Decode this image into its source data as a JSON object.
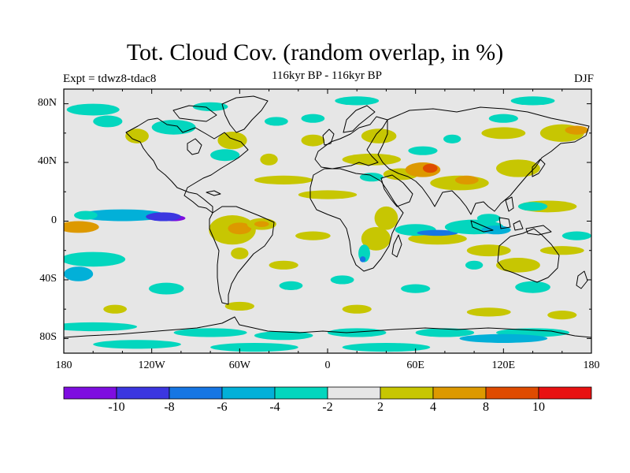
{
  "title": "Tot. Cloud Cov. (random overlap, in %)",
  "subtitle": "116kyr BP - 116kyr BP",
  "experiment": "Expt = tdwz8-tdac8",
  "season": "DJF",
  "map": {
    "projection": "cylindrical-equidistant",
    "lon_range": [
      -180,
      180
    ],
    "lat_range": [
      -90,
      90
    ],
    "lon_ticks": [
      {
        "value": -180,
        "label": "180"
      },
      {
        "value": -120,
        "label": "120W"
      },
      {
        "value": -60,
        "label": "60W"
      },
      {
        "value": 0,
        "label": "0"
      },
      {
        "value": 60,
        "label": "60E"
      },
      {
        "value": 120,
        "label": "120E"
      },
      {
        "value": 180,
        "label": "180"
      }
    ],
    "lat_ticks": [
      {
        "value": 80,
        "label": "80N"
      },
      {
        "value": 40,
        "label": "40N"
      },
      {
        "value": 0,
        "label": "0"
      },
      {
        "value": -40,
        "label": "40S"
      },
      {
        "value": -80,
        "label": "80S"
      }
    ],
    "background_color": "#e6e6e6",
    "anomalies": [
      {
        "lon": -140,
        "lat": 4,
        "rlon": 30,
        "rlat": 4,
        "cls": 3
      },
      {
        "lon": -105,
        "lat": 2,
        "rlon": 8,
        "rlat": 2,
        "cls": 0
      },
      {
        "lon": -112,
        "lat": 3,
        "rlon": 12,
        "rlat": 3,
        "cls": 1
      },
      {
        "lon": -165,
        "lat": 4,
        "rlon": 8,
        "rlat": 3,
        "cls": 4
      },
      {
        "lon": -170,
        "lat": -4,
        "rlon": 14,
        "rlat": 4,
        "cls": 7
      },
      {
        "lon": -160,
        "lat": -26,
        "rlon": 22,
        "rlat": 5,
        "cls": 4
      },
      {
        "lon": -170,
        "lat": -36,
        "rlon": 10,
        "rlat": 5,
        "cls": 3
      },
      {
        "lon": -150,
        "lat": 68,
        "rlon": 10,
        "rlat": 4,
        "cls": 4
      },
      {
        "lon": -160,
        "lat": 76,
        "rlon": 18,
        "rlat": 4,
        "cls": 4
      },
      {
        "lon": -105,
        "lat": 64,
        "rlon": 15,
        "rlat": 5,
        "cls": 4
      },
      {
        "lon": -80,
        "lat": 78,
        "rlon": 12,
        "rlat": 3,
        "cls": 4
      },
      {
        "lon": -70,
        "lat": 45,
        "rlon": 10,
        "rlat": 4,
        "cls": 4
      },
      {
        "lon": -35,
        "lat": 68,
        "rlon": 8,
        "rlat": 3,
        "cls": 4
      },
      {
        "lon": -130,
        "lat": 58,
        "rlon": 8,
        "rlat": 5,
        "cls": 6
      },
      {
        "lon": -65,
        "lat": 55,
        "rlon": 10,
        "rlat": 6,
        "cls": 6
      },
      {
        "lon": -40,
        "lat": 42,
        "rlon": 6,
        "rlat": 4,
        "cls": 6
      },
      {
        "lon": -10,
        "lat": 55,
        "rlon": 8,
        "rlat": 4,
        "cls": 6
      },
      {
        "lon": -65,
        "lat": -6,
        "rlon": 16,
        "rlat": 10,
        "cls": 6
      },
      {
        "lon": -60,
        "lat": -5,
        "rlon": 8,
        "rlat": 4,
        "cls": 7
      },
      {
        "lon": -45,
        "lat": -2,
        "rlon": 10,
        "rlat": 4,
        "cls": 6
      },
      {
        "lon": -45,
        "lat": -2,
        "rlon": 5,
        "rlat": 2,
        "cls": 7
      },
      {
        "lon": -60,
        "lat": -22,
        "rlon": 6,
        "rlat": 4,
        "cls": 6
      },
      {
        "lon": -30,
        "lat": 28,
        "rlon": 20,
        "rlat": 3,
        "cls": 6
      },
      {
        "lon": 0,
        "lat": 18,
        "rlon": 20,
        "rlat": 3,
        "cls": 6
      },
      {
        "lon": -10,
        "lat": -10,
        "rlon": 12,
        "rlat": 3,
        "cls": 6
      },
      {
        "lon": -30,
        "lat": -30,
        "rlon": 10,
        "rlat": 3,
        "cls": 6
      },
      {
        "lon": 35,
        "lat": 58,
        "rlon": 12,
        "rlat": 5,
        "cls": 6
      },
      {
        "lon": 30,
        "lat": 42,
        "rlon": 20,
        "rlat": 4,
        "cls": 6
      },
      {
        "lon": 50,
        "lat": 32,
        "rlon": 12,
        "rlat": 4,
        "cls": 6
      },
      {
        "lon": 65,
        "lat": 35,
        "rlon": 12,
        "rlat": 5,
        "cls": 7
      },
      {
        "lon": 70,
        "lat": 36,
        "rlon": 5,
        "rlat": 3,
        "cls": 8
      },
      {
        "lon": 90,
        "lat": 26,
        "rlon": 20,
        "rlat": 5,
        "cls": 6
      },
      {
        "lon": 95,
        "lat": 28,
        "rlon": 8,
        "rlat": 3,
        "cls": 7
      },
      {
        "lon": 130,
        "lat": 36,
        "rlon": 15,
        "rlat": 6,
        "cls": 6
      },
      {
        "lon": 160,
        "lat": 60,
        "rlon": 15,
        "rlat": 6,
        "cls": 6
      },
      {
        "lon": 170,
        "lat": 62,
        "rlon": 8,
        "rlat": 3,
        "cls": 7
      },
      {
        "lon": 120,
        "lat": 60,
        "rlon": 15,
        "rlat": 4,
        "cls": 6
      },
      {
        "lon": 40,
        "lat": 2,
        "rlon": 8,
        "rlat": 8,
        "cls": 6
      },
      {
        "lon": 33,
        "lat": -12,
        "rlon": 10,
        "rlat": 8,
        "cls": 6
      },
      {
        "lon": 75,
        "lat": -12,
        "rlon": 20,
        "rlat": 4,
        "cls": 6
      },
      {
        "lon": 150,
        "lat": 10,
        "rlon": 20,
        "rlat": 4,
        "cls": 6
      },
      {
        "lon": 130,
        "lat": -30,
        "rlon": 15,
        "rlat": 5,
        "cls": 6
      },
      {
        "lon": 110,
        "lat": -20,
        "rlon": 15,
        "rlat": 4,
        "cls": 6
      },
      {
        "lon": 160,
        "lat": -20,
        "rlon": 15,
        "rlat": 3,
        "cls": 6
      },
      {
        "lon": -145,
        "lat": -60,
        "rlon": 8,
        "rlat": 3,
        "cls": 6
      },
      {
        "lon": -60,
        "lat": -58,
        "rlon": 10,
        "rlat": 3,
        "cls": 6
      },
      {
        "lon": 20,
        "lat": -60,
        "rlon": 10,
        "rlat": 3,
        "cls": 6
      },
      {
        "lon": 110,
        "lat": -62,
        "rlon": 15,
        "rlat": 3,
        "cls": 6
      },
      {
        "lon": 160,
        "lat": -64,
        "rlon": 10,
        "rlat": 3,
        "cls": 6
      },
      {
        "lon": -110,
        "lat": -46,
        "rlon": 12,
        "rlat": 4,
        "cls": 4
      },
      {
        "lon": -25,
        "lat": -44,
        "rlon": 8,
        "rlat": 3,
        "cls": 4
      },
      {
        "lon": 10,
        "lat": -40,
        "rlon": 8,
        "rlat": 3,
        "cls": 4
      },
      {
        "lon": 140,
        "lat": -45,
        "rlon": 12,
        "rlat": 4,
        "cls": 4
      },
      {
        "lon": 100,
        "lat": -30,
        "rlon": 6,
        "rlat": 3,
        "cls": 4
      },
      {
        "lon": 60,
        "lat": -46,
        "rlon": 10,
        "rlat": 3,
        "cls": 4
      },
      {
        "lon": 20,
        "lat": 82,
        "rlon": 15,
        "rlat": 3,
        "cls": 4
      },
      {
        "lon": 140,
        "lat": 82,
        "rlon": 15,
        "rlat": 3,
        "cls": 4
      },
      {
        "lon": 120,
        "lat": 70,
        "rlon": 10,
        "rlat": 3,
        "cls": 4
      },
      {
        "lon": 30,
        "lat": 30,
        "rlon": 8,
        "rlat": 3,
        "cls": 4
      },
      {
        "lon": 65,
        "lat": 48,
        "rlon": 10,
        "rlat": 3,
        "cls": 4
      },
      {
        "lon": 85,
        "lat": 56,
        "rlon": 6,
        "rlat": 3,
        "cls": 4
      },
      {
        "lon": 60,
        "lat": -6,
        "rlon": 14,
        "rlat": 4,
        "cls": 4
      },
      {
        "lon": 75,
        "lat": -8,
        "rlon": 14,
        "rlat": 2,
        "cls": 2
      },
      {
        "lon": 100,
        "lat": -4,
        "rlon": 20,
        "rlat": 5,
        "cls": 4
      },
      {
        "lon": 115,
        "lat": -6,
        "rlon": 10,
        "rlat": 3,
        "cls": 3
      },
      {
        "lon": 110,
        "lat": 2,
        "rlon": 8,
        "rlat": 3,
        "cls": 4
      },
      {
        "lon": 140,
        "lat": 10,
        "rlon": 10,
        "rlat": 3,
        "cls": 4
      },
      {
        "lon": 170,
        "lat": -10,
        "rlon": 10,
        "rlat": 3,
        "cls": 4
      },
      {
        "lon": 25,
        "lat": -22,
        "rlon": 4,
        "rlat": 6,
        "cls": 4
      },
      {
        "lon": 24,
        "lat": -26,
        "rlon": 2,
        "rlat": 2,
        "cls": 2
      },
      {
        "lon": -160,
        "lat": -72,
        "rlon": 30,
        "rlat": 3,
        "cls": 4
      },
      {
        "lon": -80,
        "lat": -76,
        "rlon": 25,
        "rlat": 3,
        "cls": 4
      },
      {
        "lon": -30,
        "lat": -78,
        "rlon": 20,
        "rlat": 3,
        "cls": 4
      },
      {
        "lon": 20,
        "lat": -76,
        "rlon": 20,
        "rlat": 3,
        "cls": 4
      },
      {
        "lon": 80,
        "lat": -76,
        "rlon": 20,
        "rlat": 3,
        "cls": 4
      },
      {
        "lon": 140,
        "lat": -76,
        "rlon": 25,
        "rlat": 3,
        "cls": 4
      },
      {
        "lon": 120,
        "lat": -80,
        "rlon": 30,
        "rlat": 3,
        "cls": 3
      },
      {
        "lon": -130,
        "lat": -84,
        "rlon": 30,
        "rlat": 3,
        "cls": 4
      },
      {
        "lon": -50,
        "lat": -86,
        "rlon": 30,
        "rlat": 3,
        "cls": 4
      },
      {
        "lon": 40,
        "lat": -86,
        "rlon": 30,
        "rlat": 3,
        "cls": 4
      },
      {
        "lon": -10,
        "lat": 70,
        "rlon": 8,
        "rlat": 3,
        "cls": 4
      }
    ]
  },
  "colorbar": {
    "colors": [
      "#7e0de0",
      "#3b36e0",
      "#1676e3",
      "#02b0d8",
      "#03d6be",
      "#e6e6e6",
      "#c7c602",
      "#dd9900",
      "#df4b00",
      "#e81111"
    ],
    "labels": [
      "-10",
      "-8",
      "-6",
      "-4",
      "-2",
      "2",
      "4",
      "8",
      "10"
    ]
  }
}
